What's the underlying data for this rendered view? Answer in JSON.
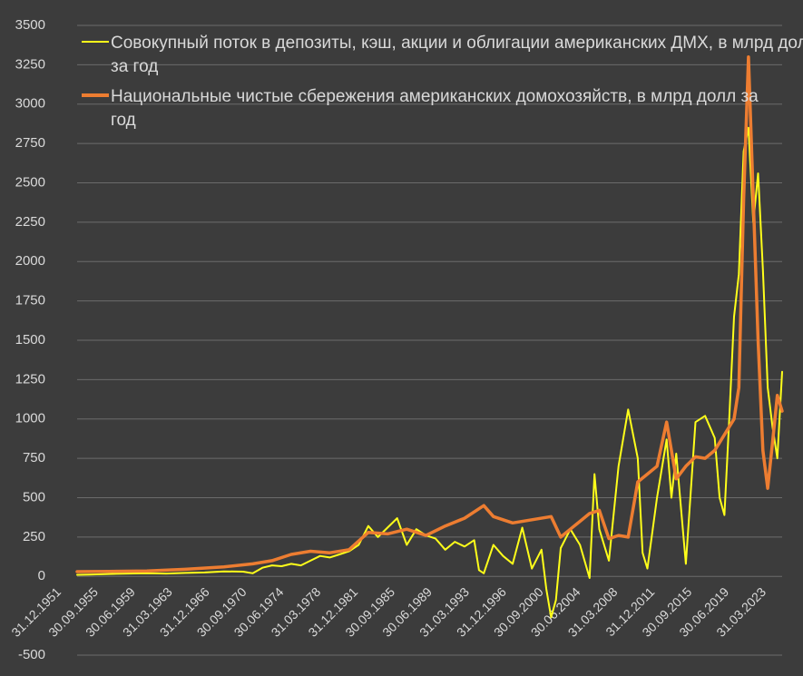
{
  "chart_data": {
    "type": "line",
    "title": "",
    "xlabel": "",
    "ylabel": "",
    "ylim": [
      -500,
      3500
    ],
    "y_ticks": [
      -500,
      0,
      250,
      500,
      750,
      1000,
      1250,
      1500,
      1750,
      2000,
      2250,
      2500,
      2750,
      3000,
      3250,
      3500
    ],
    "x_tick_labels": [
      "31.12.1951",
      "30.09.1955",
      "30.06.1959",
      "31.03.1963",
      "31.12.1966",
      "30.09.1970",
      "30.06.1974",
      "31.03.1978",
      "31.12.1981",
      "30.09.1985",
      "30.06.1989",
      "31.03.1993",
      "31.12.1996",
      "30.09.2000",
      "30.06.2004",
      "31.03.2008",
      "31.12.2011",
      "30.09.2015",
      "30.06.2019",
      "31.03.2023"
    ],
    "x_range": [
      1951.75,
      2025.0
    ],
    "grid": "horizontal",
    "legend_position": "top-left",
    "series": [
      {
        "name": "Совокупный поток в депозиты, кэш, акции и облигации американских ДМХ, в млрд долл за год",
        "color": "#ffff1a",
        "points": [
          [
            1951.75,
            10
          ],
          [
            1953,
            12
          ],
          [
            1955,
            15
          ],
          [
            1957,
            18
          ],
          [
            1959,
            20
          ],
          [
            1961,
            18
          ],
          [
            1963,
            22
          ],
          [
            1965,
            25
          ],
          [
            1967,
            32
          ],
          [
            1969,
            30
          ],
          [
            1970,
            20
          ],
          [
            1971,
            55
          ],
          [
            1972,
            70
          ],
          [
            1973,
            65
          ],
          [
            1974,
            80
          ],
          [
            1975,
            70
          ],
          [
            1976,
            100
          ],
          [
            1977,
            130
          ],
          [
            1978,
            120
          ],
          [
            1979,
            140
          ],
          [
            1980,
            160
          ],
          [
            1981,
            200
          ],
          [
            1982,
            320
          ],
          [
            1983,
            250
          ],
          [
            1984,
            310
          ],
          [
            1985,
            370
          ],
          [
            1986,
            200
          ],
          [
            1987,
            300
          ],
          [
            1988,
            260
          ],
          [
            1989,
            240
          ],
          [
            1990,
            170
          ],
          [
            1991,
            220
          ],
          [
            1992,
            190
          ],
          [
            1993,
            230
          ],
          [
            1993.5,
            40
          ],
          [
            1994,
            20
          ],
          [
            1995,
            200
          ],
          [
            1996,
            130
          ],
          [
            1997,
            80
          ],
          [
            1998,
            310
          ],
          [
            1999,
            50
          ],
          [
            2000,
            170
          ],
          [
            2000.5,
            -80
          ],
          [
            2001,
            -260
          ],
          [
            2001.5,
            -150
          ],
          [
            2002,
            180
          ],
          [
            2003,
            300
          ],
          [
            2004,
            200
          ],
          [
            2005,
            -10
          ],
          [
            2005.5,
            650
          ],
          [
            2006,
            300
          ],
          [
            2007,
            100
          ],
          [
            2008,
            700
          ],
          [
            2009,
            1060
          ],
          [
            2010,
            750
          ],
          [
            2010.5,
            150
          ],
          [
            2011,
            50
          ],
          [
            2012,
            500
          ],
          [
            2013,
            870
          ],
          [
            2013.5,
            500
          ],
          [
            2014,
            780
          ],
          [
            2015,
            80
          ],
          [
            2016,
            980
          ],
          [
            2017,
            1020
          ],
          [
            2018,
            880
          ],
          [
            2018.5,
            500
          ],
          [
            2019,
            390
          ],
          [
            2019.5,
            1000
          ],
          [
            2020,
            1650
          ],
          [
            2020.5,
            1920
          ],
          [
            2021,
            2700
          ],
          [
            2021.5,
            2850
          ],
          [
            2022,
            2250
          ],
          [
            2022.5,
            2560
          ],
          [
            2023,
            1950
          ],
          [
            2023.5,
            1200
          ],
          [
            2024,
            950
          ],
          [
            2024.5,
            750
          ],
          [
            2025,
            1300
          ]
        ]
      },
      {
        "name": "Национальные чистые сбережения американских домохозяйств, в млрд долл за год",
        "color": "#ed7d31",
        "points": [
          [
            1951.75,
            30
          ],
          [
            1955,
            32
          ],
          [
            1959,
            35
          ],
          [
            1963,
            45
          ],
          [
            1967,
            60
          ],
          [
            1970,
            80
          ],
          [
            1972,
            100
          ],
          [
            1974,
            140
          ],
          [
            1976,
            160
          ],
          [
            1978,
            150
          ],
          [
            1980,
            170
          ],
          [
            1982,
            280
          ],
          [
            1984,
            270
          ],
          [
            1986,
            300
          ],
          [
            1988,
            260
          ],
          [
            1990,
            320
          ],
          [
            1992,
            370
          ],
          [
            1994,
            450
          ],
          [
            1995,
            380
          ],
          [
            1997,
            340
          ],
          [
            1999,
            360
          ],
          [
            2001,
            380
          ],
          [
            2002,
            250
          ],
          [
            2003,
            300
          ],
          [
            2005,
            400
          ],
          [
            2006,
            420
          ],
          [
            2007,
            240
          ],
          [
            2008,
            260
          ],
          [
            2009,
            250
          ],
          [
            2010,
            600
          ],
          [
            2011,
            650
          ],
          [
            2012,
            700
          ],
          [
            2013,
            980
          ],
          [
            2014,
            620
          ],
          [
            2015,
            700
          ],
          [
            2016,
            760
          ],
          [
            2017,
            750
          ],
          [
            2018,
            800
          ],
          [
            2019,
            900
          ],
          [
            2020,
            1000
          ],
          [
            2020.5,
            1200
          ],
          [
            2021,
            2400
          ],
          [
            2021.5,
            3300
          ],
          [
            2022,
            2400
          ],
          [
            2022.5,
            1500
          ],
          [
            2023,
            800
          ],
          [
            2023.5,
            560
          ],
          [
            2024,
            850
          ],
          [
            2024.5,
            1150
          ],
          [
            2025,
            1050
          ]
        ]
      }
    ]
  }
}
